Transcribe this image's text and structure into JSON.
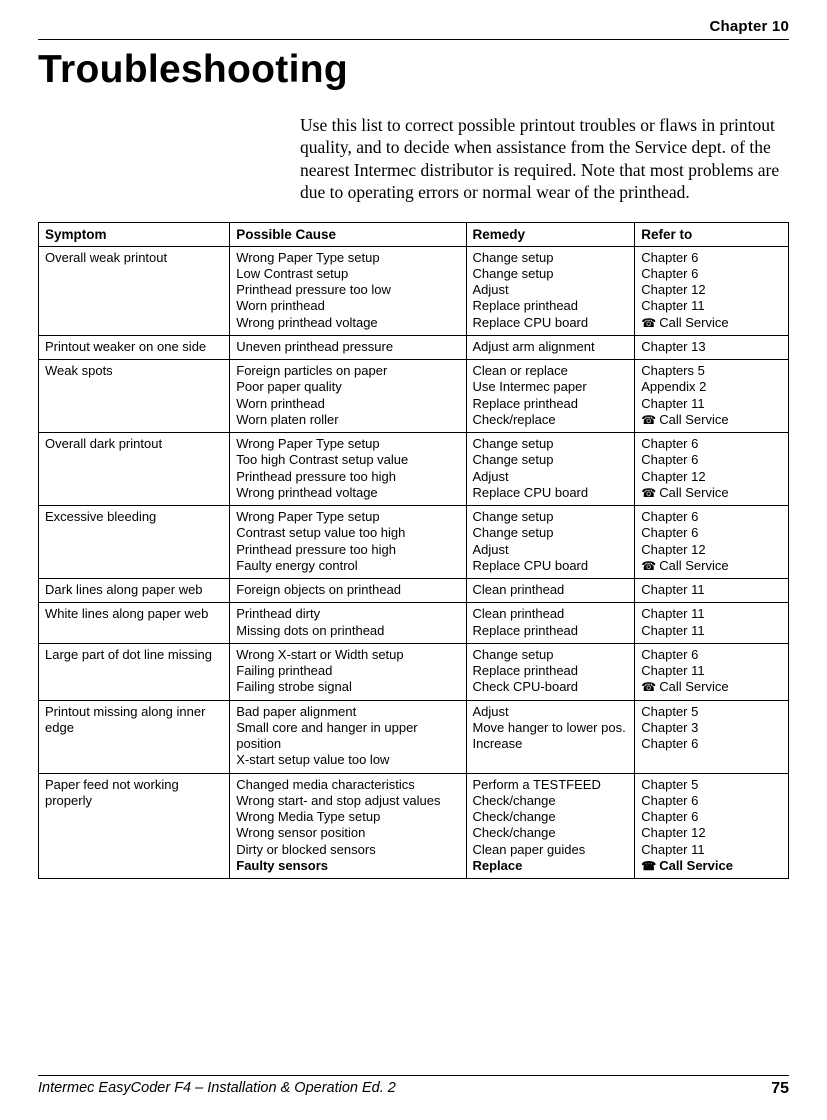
{
  "header": {
    "chapter": "Chapter 10"
  },
  "title": "Troubleshooting",
  "intro": "Use this list to correct possible printout troubles or flaws in printout quality, and to decide when assistance from the Service dept. of the nearest Intermec distributor is required. Note that most problems are due to operating errors or normal wear of the printhead.",
  "table": {
    "headers": {
      "symptom": "Symptom",
      "cause": "Possible Cause",
      "remedy": "Remedy",
      "refer": "Refer to"
    },
    "rows": [
      {
        "symptom": "Overall weak printout",
        "cause": [
          "Wrong Paper Type setup",
          "Low Contrast setup",
          "Printhead pressure too low",
          "Worn printhead",
          "Wrong printhead voltage"
        ],
        "remedy": [
          "Change setup",
          "Change setup",
          "Adjust",
          "Replace printhead",
          "Replace CPU board"
        ],
        "refer": [
          {
            "t": "Chapter 6"
          },
          {
            "t": "Chapter 6"
          },
          {
            "t": "Chapter 12"
          },
          {
            "t": "Chapter 11"
          },
          {
            "t": "Call Service",
            "phone": true
          }
        ]
      },
      {
        "symptom": "Printout weaker on one side",
        "cause": [
          "Uneven printhead pressure"
        ],
        "remedy": [
          "Adjust arm alignment"
        ],
        "refer": [
          {
            "t": "Chapter 13"
          }
        ]
      },
      {
        "symptom": "Weak spots",
        "cause": [
          "Foreign particles on paper",
          "Poor paper quality",
          "Worn printhead",
          "Worn platen roller"
        ],
        "remedy": [
          "Clean or replace",
          "Use Intermec paper",
          "Replace printhead",
          "Check/replace"
        ],
        "refer": [
          {
            "t": "Chapters 5"
          },
          {
            "t": "Appendix 2"
          },
          {
            "t": "Chapter 11"
          },
          {
            "t": "Call Service",
            "phone": true
          }
        ]
      },
      {
        "symptom": "Overall dark printout",
        "cause": [
          "Wrong Paper Type setup",
          "Too high Contrast setup value",
          "Printhead pressure too high",
          "Wrong printhead voltage"
        ],
        "remedy": [
          "Change setup",
          "Change setup",
          "Adjust",
          "Replace CPU board"
        ],
        "refer": [
          {
            "t": "Chapter 6"
          },
          {
            "t": "Chapter 6"
          },
          {
            "t": "Chapter 12"
          },
          {
            "t": "Call Service",
            "phone": true
          }
        ]
      },
      {
        "symptom": "Excessive bleeding",
        "cause": [
          "Wrong Paper Type setup",
          "Contrast setup value too high",
          "Printhead pressure too high",
          "Faulty energy control"
        ],
        "remedy": [
          "Change setup",
          "Change setup",
          "Adjust",
          "Replace CPU board"
        ],
        "refer": [
          {
            "t": "Chapter 6"
          },
          {
            "t": "Chapter 6"
          },
          {
            "t": "Chapter 12"
          },
          {
            "t": "Call Service",
            "phone": true
          }
        ]
      },
      {
        "symptom": "Dark lines along paper web",
        "cause": [
          "Foreign objects on printhead"
        ],
        "remedy": [
          "Clean printhead"
        ],
        "refer": [
          {
            "t": "Chapter 11"
          }
        ]
      },
      {
        "symptom": "White lines along paper web",
        "cause": [
          "Printhead dirty",
          "Missing dots on printhead"
        ],
        "remedy": [
          "Clean printhead",
          "Replace printhead"
        ],
        "refer": [
          {
            "t": "Chapter 11"
          },
          {
            "t": "Chapter 11"
          }
        ]
      },
      {
        "symptom": "Large part of dot line missing",
        "cause": [
          "Wrong X-start or Width setup",
          "Failing printhead",
          "Failing strobe signal"
        ],
        "remedy": [
          "Change setup",
          "Replace printhead",
          "Check CPU-board"
        ],
        "refer": [
          {
            "t": "Chapter 6"
          },
          {
            "t": "Chapter 11"
          },
          {
            "t": "Call Service",
            "phone": true
          }
        ]
      },
      {
        "symptom": "Printout missing along inner edge",
        "cause": [
          "Bad paper alignment",
          "Small core and hanger in upper position",
          "X-start setup value too low"
        ],
        "remedy": [
          "Adjust",
          "Move hanger to lower pos.",
          "Increase"
        ],
        "refer": [
          {
            "t": "Chapter 5"
          },
          {
            "t": "Chapter 3"
          },
          {
            "t": "Chapter 6"
          }
        ]
      },
      {
        "symptom": "Paper feed not working properly",
        "cause": [
          "Changed media characteristics",
          "Wrong start- and stop adjust values",
          "Wrong Media Type setup",
          "Wrong sensor position",
          "Dirty or blocked sensors",
          {
            "t": "Faulty sensors",
            "bold": true
          }
        ],
        "remedy": [
          "Perform a TESTFEED",
          "Check/change",
          "Check/change",
          "Check/change",
          "Clean paper guides",
          {
            "t": "Replace",
            "bold": true
          }
        ],
        "refer": [
          {
            "t": "Chapter 5"
          },
          {
            "t": "Chapter 6"
          },
          {
            "t": "Chapter 6"
          },
          {
            "t": "Chapter 12"
          },
          {
            "t": "Chapter 11"
          },
          {
            "t": "Call Service",
            "phone": true,
            "bold": true
          }
        ]
      }
    ]
  },
  "footer": {
    "left": "Intermec EasyCoder F4 – Installation & Operation Ed. 2",
    "page": "75"
  }
}
